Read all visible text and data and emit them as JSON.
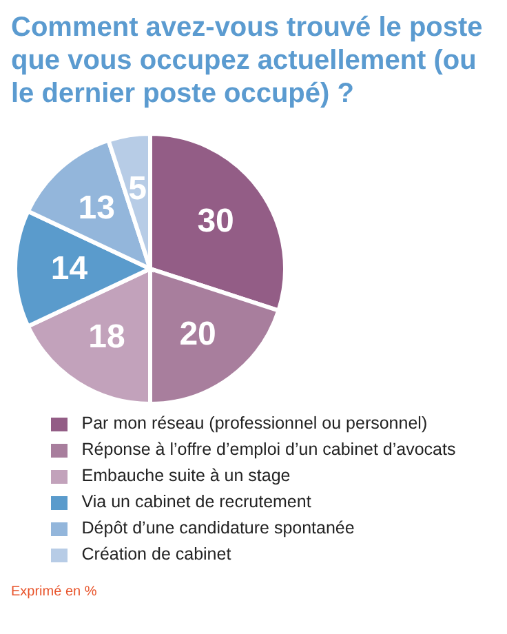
{
  "chart_data": {
    "type": "pie",
    "title": "Comment avez-vous trouvé le poste que vous occupez actuellement (ou le dernier poste occupé) ?",
    "categories": [
      "Par mon réseau (professionnel ou personnel)",
      "Réponse à l’offre d’emploi d’un cabinet d’avocats",
      "Embauche suite à un stage",
      "Via un cabinet de recrutement",
      "Dépôt d’une candidature spontanée",
      "Création de cabinet"
    ],
    "values": [
      30,
      20,
      18,
      14,
      13,
      5
    ],
    "colors": [
      "#935d86",
      "#a87e9d",
      "#c2a2bb",
      "#5a9bcc",
      "#93b6db",
      "#b7cce6"
    ],
    "data_labels": true,
    "legend": "bottom",
    "annotations": [
      "Exprimé en %"
    ]
  }
}
